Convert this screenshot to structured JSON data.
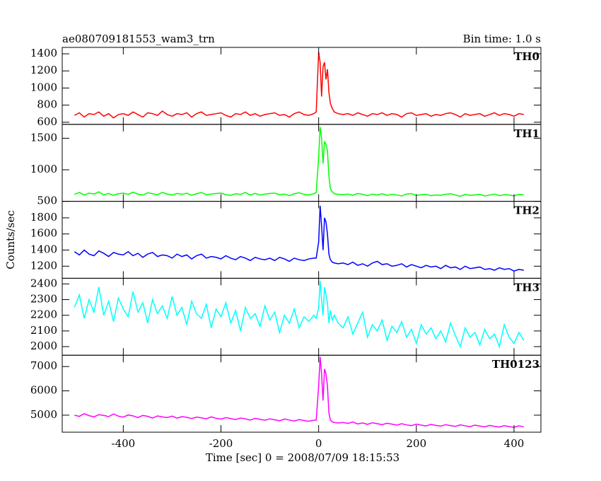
{
  "chart_data": {
    "type": "line",
    "title": "ae080709181553_wam3_trn",
    "subtitle": "Bin time: 1.0 s",
    "xlabel": "Time [sec] 0 = 2008/07/09 18:15:53",
    "ylabel": "Counts/sec",
    "xlim": [
      -525,
      455
    ],
    "xticks": [
      -400,
      -200,
      0,
      200,
      400
    ],
    "x": [
      -500,
      -490,
      -480,
      -470,
      -460,
      -450,
      -440,
      -430,
      -420,
      -410,
      -400,
      -390,
      -380,
      -370,
      -360,
      -350,
      -340,
      -330,
      -320,
      -310,
      -300,
      -290,
      -280,
      -270,
      -260,
      -250,
      -240,
      -230,
      -220,
      -210,
      -200,
      -190,
      -180,
      -170,
      -160,
      -150,
      -140,
      -130,
      -120,
      -110,
      -100,
      -90,
      -80,
      -70,
      -60,
      -50,
      -40,
      -30,
      -20,
      -10,
      -5,
      0,
      3,
      6,
      9,
      12,
      15,
      18,
      21,
      24,
      28,
      32,
      40,
      50,
      60,
      70,
      80,
      90,
      100,
      110,
      120,
      130,
      140,
      150,
      160,
      170,
      180,
      190,
      200,
      210,
      220,
      230,
      240,
      250,
      260,
      270,
      280,
      290,
      300,
      310,
      320,
      330,
      340,
      350,
      360,
      370,
      380,
      390,
      400,
      410,
      420
    ],
    "series": [
      {
        "name": "TH0",
        "color": "#ff0000",
        "ylim": [
          575,
          1475
        ],
        "yticks": [
          600,
          800,
          1000,
          1200,
          1400
        ],
        "values": [
          680,
          710,
          660,
          700,
          690,
          720,
          670,
          700,
          650,
          690,
          700,
          680,
          720,
          690,
          660,
          710,
          700,
          680,
          730,
          690,
          670,
          700,
          690,
          710,
          660,
          700,
          720,
          680,
          690,
          700,
          710,
          680,
          660,
          700,
          690,
          720,
          680,
          700,
          670,
          690,
          700,
          710,
          680,
          690,
          660,
          700,
          720,
          690,
          680,
          700,
          720,
          1420,
          1300,
          900,
          1250,
          1300,
          1100,
          1220,
          950,
          820,
          760,
          720,
          700,
          690,
          700,
          680,
          710,
          690,
          670,
          700,
          690,
          710,
          680,
          700,
          690,
          660,
          700,
          710,
          680,
          690,
          700,
          670,
          690,
          680,
          700,
          710,
          690,
          660,
          700,
          680,
          690,
          700,
          670,
          690,
          710,
          680,
          700,
          690,
          670,
          700,
          690
        ]
      },
      {
        "name": "TH1",
        "color": "#00ff00",
        "ylim": [
          500,
          1720
        ],
        "yticks": [
          500,
          1000,
          1500
        ],
        "values": [
          610,
          640,
          600,
          630,
          615,
          650,
          600,
          625,
          595,
          620,
          630,
          610,
          645,
          615,
          600,
          635,
          620,
          605,
          640,
          615,
          600,
          625,
          610,
          630,
          595,
          620,
          640,
          605,
          615,
          625,
          630,
          605,
          595,
          620,
          610,
          640,
          600,
          625,
          600,
          615,
          625,
          630,
          605,
          615,
          590,
          620,
          635,
          610,
          600,
          620,
          640,
          1200,
          1680,
          1500,
          1100,
          1450,
          1400,
          1300,
          900,
          700,
          650,
          620,
          610,
          605,
          615,
          595,
          625,
          610,
          590,
          615,
          600,
          620,
          595,
          610,
          600,
          585,
          615,
          620,
          595,
          605,
          610,
          590,
          600,
          595,
          610,
          620,
          600,
          580,
          610,
          595,
          600,
          610,
          585,
          600,
          615,
          590,
          605,
          600,
          585,
          610,
          600
        ]
      },
      {
        "name": "TH2",
        "color": "#0000ff",
        "ylim": [
          1050,
          2005
        ],
        "yticks": [
          1200,
          1400,
          1600,
          1800
        ],
        "values": [
          1380,
          1340,
          1400,
          1350,
          1330,
          1390,
          1360,
          1320,
          1370,
          1350,
          1340,
          1380,
          1330,
          1360,
          1310,
          1350,
          1370,
          1320,
          1340,
          1330,
          1300,
          1350,
          1320,
          1340,
          1290,
          1330,
          1350,
          1300,
          1320,
          1310,
          1290,
          1330,
          1300,
          1280,
          1320,
          1300,
          1270,
          1310,
          1290,
          1280,
          1300,
          1270,
          1310,
          1290,
          1260,
          1300,
          1280,
          1270,
          1290,
          1300,
          1300,
          1500,
          1950,
          1700,
          1400,
          1800,
          1750,
          1600,
          1350,
          1280,
          1250,
          1240,
          1230,
          1240,
          1220,
          1250,
          1210,
          1230,
          1200,
          1240,
          1260,
          1220,
          1230,
          1200,
          1210,
          1230,
          1190,
          1220,
          1200,
          1180,
          1210,
          1190,
          1200,
          1170,
          1210,
          1180,
          1190,
          1160,
          1200,
          1170,
          1180,
          1190,
          1160,
          1170,
          1150,
          1180,
          1160,
          1170,
          1140,
          1160,
          1150
        ]
      },
      {
        "name": "TH3",
        "color": "#00ffff",
        "ylim": [
          1945,
          2436
        ],
        "yticks": [
          2000,
          2100,
          2200,
          2300,
          2400
        ],
        "values": [
          2250,
          2330,
          2180,
          2300,
          2220,
          2380,
          2200,
          2290,
          2160,
          2310,
          2240,
          2190,
          2350,
          2220,
          2280,
          2150,
          2300,
          2210,
          2260,
          2180,
          2320,
          2200,
          2250,
          2140,
          2290,
          2210,
          2180,
          2270,
          2120,
          2240,
          2190,
          2280,
          2150,
          2230,
          2100,
          2250,
          2180,
          2210,
          2130,
          2260,
          2170,
          2220,
          2090,
          2200,
          2150,
          2240,
          2120,
          2190,
          2160,
          2200,
          2180,
          2250,
          2420,
          2300,
          2200,
          2380,
          2330,
          2280,
          2150,
          2230,
          2170,
          2200,
          2150,
          2120,
          2190,
          2080,
          2150,
          2220,
          2060,
          2140,
          2100,
          2170,
          2040,
          2130,
          2090,
          2160,
          2060,
          2110,
          2020,
          2140,
          2080,
          2120,
          2050,
          2100,
          2030,
          2150,
          2070,
          2000,
          2120,
          2060,
          2090,
          2010,
          2110,
          2050,
          2080,
          2000,
          2140,
          2060,
          2020,
          2090,
          2040
        ]
      },
      {
        "name": "TH0123",
        "color": "#ff00ff",
        "ylim": [
          4300,
          7465
        ],
        "yticks": [
          5000,
          6000,
          7000
        ],
        "values": [
          5000,
          4950,
          5060,
          4980,
          4930,
          5020,
          4990,
          4940,
          5050,
          4960,
          4920,
          5010,
          4970,
          4900,
          4990,
          4950,
          4880,
          4970,
          4930,
          4900,
          4960,
          4880,
          4940,
          4910,
          4860,
          4920,
          4890,
          4850,
          4930,
          4870,
          4840,
          4900,
          4860,
          4820,
          4880,
          4850,
          4800,
          4870,
          4830,
          4790,
          4850,
          4810,
          4770,
          4840,
          4800,
          4760,
          4820,
          4780,
          4750,
          4790,
          4800,
          6200,
          7400,
          6700,
          5600,
          6900,
          6700,
          6200,
          5100,
          4800,
          4720,
          4700,
          4680,
          4700,
          4660,
          4720,
          4640,
          4680,
          4620,
          4690,
          4650,
          4610,
          4670,
          4630,
          4590,
          4650,
          4600,
          4570,
          4630,
          4590,
          4560,
          4620,
          4580,
          4550,
          4610,
          4570,
          4540,
          4600,
          4560,
          4530,
          4590,
          4550,
          4520,
          4580,
          4540,
          4510,
          4570,
          4530,
          4500,
          4560,
          4520
        ]
      }
    ]
  }
}
